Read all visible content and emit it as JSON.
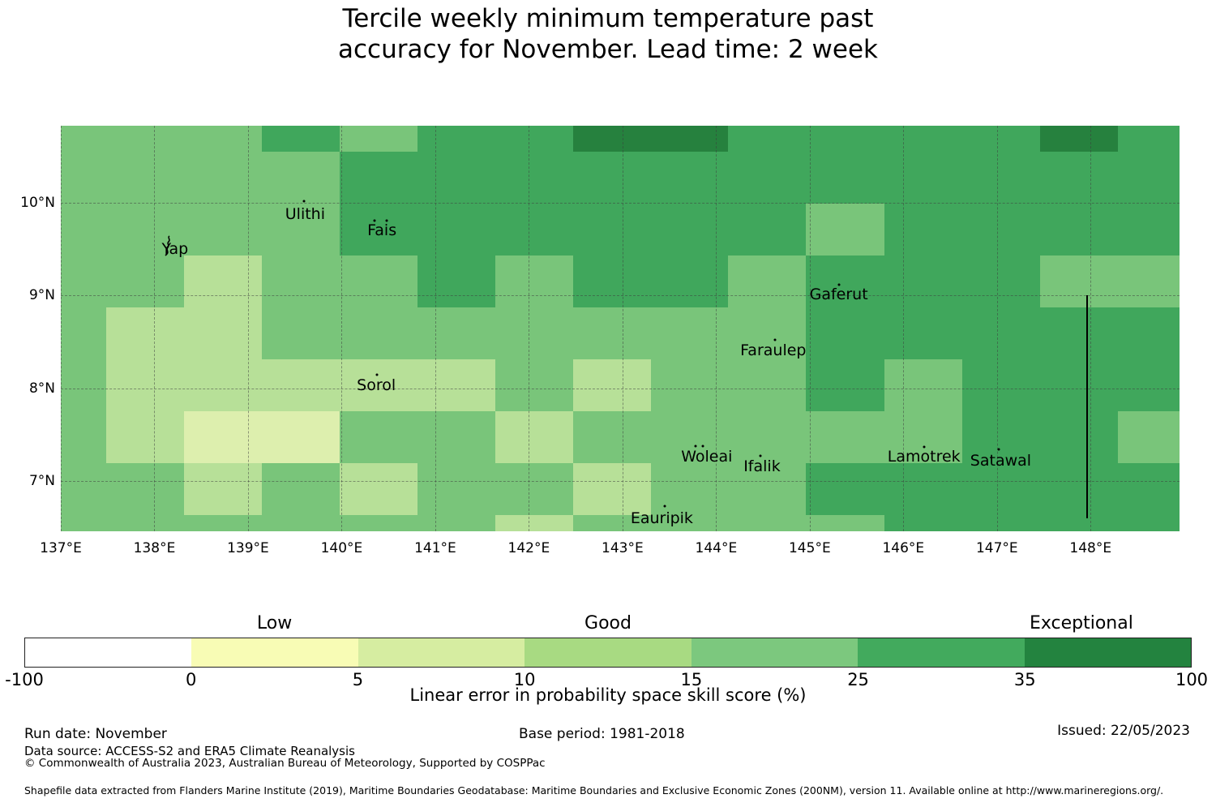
{
  "title": {
    "line1": "Tercile weekly minimum temperature past",
    "line2": "accuracy for November. Lead time: 2 week"
  },
  "chart_data": {
    "type": "heatmap",
    "title": "Tercile weekly minimum temperature past accuracy for November. Lead time: 2 week",
    "grid": "dashed graticule at 1 degree spacing",
    "lon_range": [
      137.0,
      148.95
    ],
    "lat_range": [
      6.46,
      10.831
    ],
    "x_ticks": [
      {
        "lon": 137,
        "label": "137°E"
      },
      {
        "lon": 138,
        "label": "138°E"
      },
      {
        "lon": 139,
        "label": "139°E"
      },
      {
        "lon": 140,
        "label": "140°E"
      },
      {
        "lon": 141,
        "label": "141°E"
      },
      {
        "lon": 142,
        "label": "142°E"
      },
      {
        "lon": 143,
        "label": "143°E"
      },
      {
        "lon": 144,
        "label": "144°E"
      },
      {
        "lon": 145,
        "label": "145°E"
      },
      {
        "lon": 146,
        "label": "146°E"
      },
      {
        "lon": 147,
        "label": "147°E"
      },
      {
        "lon": 148,
        "label": "148°E"
      }
    ],
    "y_ticks": [
      {
        "lat": 10,
        "label": "10°N"
      },
      {
        "lat": 9,
        "label": "9°N"
      },
      {
        "lat": 8,
        "label": "8°N"
      },
      {
        "lat": 7,
        "label": "7°N"
      }
    ],
    "class_bins": [
      "-100 to 0",
      "0 to 5",
      "5 to 10",
      "10 to 15",
      "15 to 25",
      "25 to 35",
      "35 to 100"
    ],
    "palette_map": [
      "#ffffff",
      "#f8fcb5",
      "#ddefae",
      "#b7e098",
      "#79c57a",
      "#40a75c",
      "#26813e"
    ],
    "palette_bar": [
      "#ffffff",
      "#f8fcb5",
      "#d6eda1",
      "#a8da82",
      "#7cc87e",
      "#42aa5d",
      "#23833f"
    ],
    "lon_edges": [
      136.99,
      137.485,
      138.316,
      139.147,
      139.978,
      140.81,
      141.64,
      142.47,
      143.3,
      144.13,
      144.96,
      145.8,
      146.63,
      147.46,
      148.29,
      148.96
    ],
    "lat_edges": [
      10.831,
      10.551,
      9.992,
      9.432,
      8.873,
      8.313,
      7.754,
      7.194,
      6.635,
      6.455
    ],
    "grid_classes": [
      [
        4,
        4,
        4,
        5,
        4,
        5,
        5,
        6,
        6,
        5,
        5,
        5,
        5,
        6,
        5
      ],
      [
        4,
        4,
        4,
        4,
        5,
        5,
        5,
        5,
        5,
        5,
        5,
        5,
        5,
        5,
        5
      ],
      [
        4,
        4,
        4,
        4,
        5,
        5,
        5,
        5,
        5,
        5,
        4,
        5,
        5,
        5,
        5
      ],
      [
        4,
        4,
        3,
        4,
        4,
        5,
        4,
        5,
        5,
        4,
        5,
        5,
        5,
        4,
        4
      ],
      [
        4,
        3,
        3,
        4,
        4,
        4,
        4,
        4,
        4,
        4,
        5,
        5,
        5,
        5,
        5
      ],
      [
        4,
        3,
        3,
        3,
        3,
        3,
        4,
        3,
        4,
        4,
        5,
        4,
        5,
        5,
        5
      ],
      [
        4,
        3,
        2,
        2,
        4,
        4,
        3,
        4,
        4,
        4,
        4,
        4,
        5,
        5,
        4
      ],
      [
        4,
        4,
        3,
        4,
        3,
        4,
        4,
        3,
        4,
        4,
        5,
        5,
        5,
        5,
        5
      ],
      [
        4,
        4,
        4,
        4,
        4,
        4,
        3,
        4,
        4,
        4,
        4,
        5,
        5,
        5,
        5
      ]
    ],
    "islands": [
      {
        "name": "Yap",
        "lon": 138.22,
        "lat": 9.5,
        "glyph": "yap",
        "dots": []
      },
      {
        "name": "Ulithi",
        "lon": 139.61,
        "lat": 9.88,
        "dots": [
          [
            139.6,
            10.02
          ]
        ]
      },
      {
        "name": "Fais",
        "lon": 140.43,
        "lat": 9.7,
        "dots": [
          [
            140.35,
            9.81
          ],
          [
            140.48,
            9.81
          ]
        ]
      },
      {
        "name": "Sorol",
        "lon": 140.37,
        "lat": 8.03,
        "dots": [
          [
            140.38,
            8.15
          ]
        ]
      },
      {
        "name": "Gaferut",
        "lon": 145.31,
        "lat": 9.01,
        "dots": [
          [
            145.31,
            9.12
          ]
        ]
      },
      {
        "name": "Faraulep",
        "lon": 144.61,
        "lat": 8.41,
        "dots": [
          [
            144.63,
            8.52
          ]
        ]
      },
      {
        "name": "Woleai",
        "lon": 143.9,
        "lat": 7.26,
        "dots": [
          [
            143.78,
            7.38
          ],
          [
            143.86,
            7.38
          ]
        ]
      },
      {
        "name": "Ifalik",
        "lon": 144.49,
        "lat": 7.16,
        "dots": [
          [
            144.47,
            7.27
          ]
        ]
      },
      {
        "name": "Lamotrek",
        "lon": 146.22,
        "lat": 7.26,
        "dots": [
          [
            146.22,
            7.37
          ]
        ]
      },
      {
        "name": "Satawal",
        "lon": 147.04,
        "lat": 7.22,
        "dots": [
          [
            147.02,
            7.34
          ]
        ]
      },
      {
        "name": "Eauripik",
        "lon": 143.42,
        "lat": 6.6,
        "dots": [
          [
            143.45,
            6.73
          ]
        ]
      }
    ],
    "eez_line": {
      "lon": 147.95,
      "lat_top": 9.0,
      "lat_bottom": 6.6
    },
    "legend_position": "bottom horizontal colorbar"
  },
  "colorbar": {
    "bounds": [
      -100,
      0,
      5,
      10,
      15,
      25,
      35,
      100
    ],
    "tick_labels": [
      "-100",
      "0",
      "5",
      "10",
      "15",
      "25",
      "35",
      "100"
    ],
    "categories": [
      {
        "label": "Low",
        "value": 2.5
      },
      {
        "label": "Good",
        "value": 12.5
      },
      {
        "label": "Exceptional",
        "value": 57
      }
    ],
    "axis_label": "Linear error in probability space skill score (%)"
  },
  "footer": {
    "run_date": "Run date: November",
    "data_source": "Data source: ACCESS-S2 and ERA5 Climate Reanalysis",
    "copyright": "© Commonwealth of Australia 2023, Australian Bureau of Meteorology, Supported by COSPPac",
    "base_period": "Base period: 1981-2018",
    "issued": "Issued: 22/05/2023",
    "shapefile_note": "Shapefile data extracted from Flanders Marine Institute (2019), Maritime Boundaries Geodatabase: Maritime Boundaries and Exclusive Economic Zones (200NM), version 11. Available online at http://www.marineregions.org/."
  }
}
